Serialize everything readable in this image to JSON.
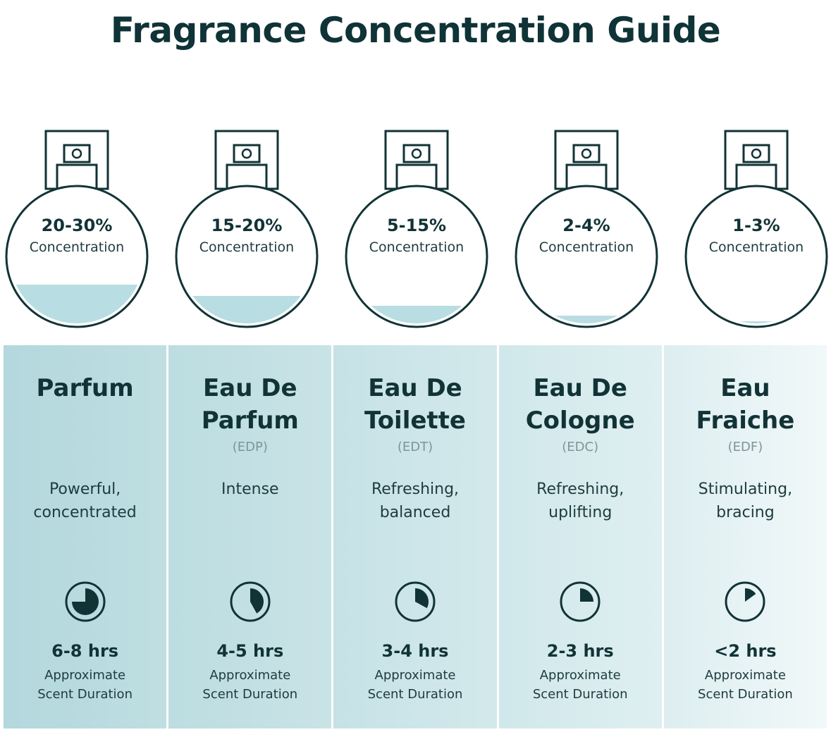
{
  "title": "Fragrance Concentration Guide",
  "colors": {
    "ink": "#123336",
    "liquid": "#b8dde2",
    "panel_dark": "#b7dadf",
    "panel_light": "#eaf5f6"
  },
  "fragrances": [
    {
      "concentration": "20-30%",
      "concentration_label": "Concentration",
      "fill_level": 0.3,
      "name": "Parfum",
      "abbr": "",
      "description": "Powerful,\nconcentrated",
      "clock_icon": "clock-pie-icon",
      "duration_fraction": 0.75,
      "duration": "6-8 hrs",
      "duration_label": "Approximate\nScent Duration"
    },
    {
      "concentration": "15-20%",
      "concentration_label": "Concentration",
      "fill_level": 0.22,
      "name": "Eau De\nParfum",
      "abbr": "(EDP)",
      "description": "Intense",
      "clock_icon": "clock-pie-icon",
      "duration_fraction": 0.42,
      "duration": "4-5 hrs",
      "duration_label": "Approximate\nScent Duration"
    },
    {
      "concentration": "5-15%",
      "concentration_label": "Concentration",
      "fill_level": 0.15,
      "name": "Eau De\nToilette",
      "abbr": "(EDT)",
      "description": "Refreshing,\nbalanced",
      "clock_icon": "clock-pie-icon",
      "duration_fraction": 0.33,
      "duration": "3-4 hrs",
      "duration_label": "Approximate\nScent Duration"
    },
    {
      "concentration": "2-4%",
      "concentration_label": "Concentration",
      "fill_level": 0.08,
      "name": "Eau De\nCologne",
      "abbr": "(EDC)",
      "description": "Refreshing,\nuplifting",
      "clock_icon": "clock-pie-icon",
      "duration_fraction": 0.25,
      "duration": "2-3 hrs",
      "duration_label": "Approximate\nScent Duration"
    },
    {
      "concentration": "1-3%",
      "concentration_label": "Concentration",
      "fill_level": 0.04,
      "name": "Eau\nFraiche",
      "abbr": "(EDF)",
      "description": "Stimulating,\nbracing",
      "clock_icon": "clock-pie-icon",
      "duration_fraction": 0.15,
      "duration": "<2 hrs",
      "duration_label": "Approximate\nScent Duration"
    }
  ]
}
